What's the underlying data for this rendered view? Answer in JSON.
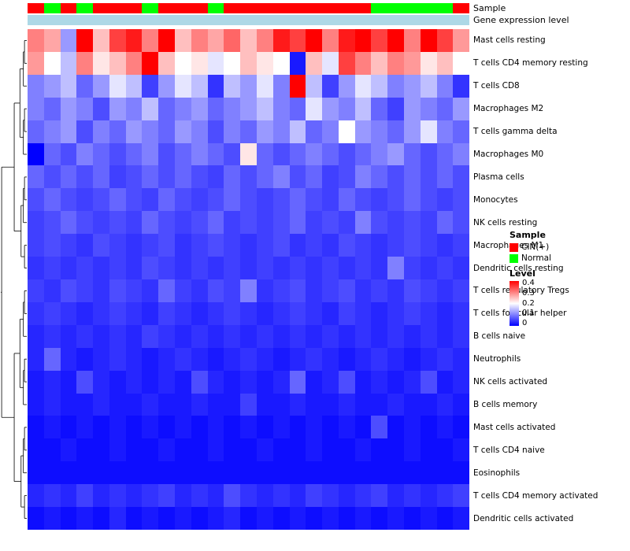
{
  "annotations": {
    "sample_label": "Sample",
    "expression_label": "Gene expression level",
    "expression_color": "#ADD8E6",
    "group_colors": {
      "CIN(+)": "#FF0000",
      "Normal": "#00FF00"
    },
    "groups": [
      "CIN(+)",
      "Normal",
      "CIN(+)",
      "Normal",
      "CIN(+)",
      "CIN(+)",
      "CIN(+)",
      "Normal",
      "CIN(+)",
      "CIN(+)",
      "CIN(+)",
      "Normal",
      "CIN(+)",
      "CIN(+)",
      "CIN(+)",
      "CIN(+)",
      "CIN(+)",
      "CIN(+)",
      "CIN(+)",
      "CIN(+)",
      "CIN(+)",
      "Normal",
      "Normal",
      "Normal",
      "Normal",
      "Normal",
      "CIN(+)"
    ]
  },
  "legend": {
    "sample_title": "Sample",
    "sample_items": [
      {
        "label": "CIN(+)",
        "color": "#FF0000"
      },
      {
        "label": "Normal",
        "color": "#00FF00"
      }
    ],
    "level_title": "Level",
    "level_ticks": [
      "0.4",
      "0.3",
      "0.2",
      "0.1",
      "0"
    ],
    "gradient": [
      "#FF0000",
      "#FFFFFF",
      "#0000FF"
    ]
  },
  "chart_data": {
    "type": "heatmap",
    "title": "",
    "rows": [
      "Mast cells resting",
      "T cells CD4 memory resting",
      "T cells CD8",
      "Macrophages M2",
      "T cells gamma delta",
      "Macrophages M0",
      "Plasma cells",
      "Monocytes",
      "NK cells resting",
      "Macrophages M1",
      "Dendritic cells resting",
      "T cells regulatory  Tregs",
      "T cells follicular helper",
      "B cells naive",
      "Neutrophils",
      "NK cells activated",
      "B cells memory",
      "Mast cells activated",
      "T cells CD4 naive",
      "Eosinophils",
      "T cells CD4 memory activated",
      "Dendritic cells activated"
    ],
    "columns": 27,
    "column_groups": [
      "CIN(+)",
      "Normal",
      "CIN(+)",
      "Normal",
      "CIN(+)",
      "CIN(+)",
      "CIN(+)",
      "Normal",
      "CIN(+)",
      "CIN(+)",
      "CIN(+)",
      "Normal",
      "CIN(+)",
      "CIN(+)",
      "CIN(+)",
      "CIN(+)",
      "CIN(+)",
      "CIN(+)",
      "CIN(+)",
      "CIN(+)",
      "CIN(+)",
      "Normal",
      "Normal",
      "Normal",
      "Normal",
      "Normal",
      "CIN(+)"
    ],
    "color_scale": {
      "min": 0,
      "mid": 0.2,
      "max": 0.4,
      "min_color": "#0000FF",
      "mid_color": "#FFFFFF",
      "max_color": "#FF0000"
    },
    "legend_position": "right",
    "row_dendrogram": true,
    "values": [
      [
        0.3,
        0.27,
        0.12,
        0.4,
        0.25,
        0.35,
        0.38,
        0.3,
        0.4,
        0.25,
        0.3,
        0.27,
        0.32,
        0.25,
        0.3,
        0.38,
        0.35,
        0.4,
        0.3,
        0.38,
        0.4,
        0.35,
        0.4,
        0.3,
        0.4,
        0.35,
        0.28
      ],
      [
        0.28,
        0.2,
        0.15,
        0.3,
        0.22,
        0.25,
        0.3,
        0.4,
        0.25,
        0.2,
        0.22,
        0.18,
        0.2,
        0.25,
        0.22,
        0.2,
        0.02,
        0.25,
        0.18,
        0.35,
        0.3,
        0.25,
        0.3,
        0.28,
        0.22,
        0.25,
        0.2
      ],
      [
        0.1,
        0.12,
        0.15,
        0.08,
        0.12,
        0.18,
        0.15,
        0.05,
        0.12,
        0.18,
        0.15,
        0.04,
        0.15,
        0.12,
        0.18,
        0.1,
        0.4,
        0.15,
        0.05,
        0.12,
        0.18,
        0.15,
        0.1,
        0.12,
        0.15,
        0.1,
        0.04
      ],
      [
        0.1,
        0.08,
        0.12,
        0.1,
        0.06,
        0.12,
        0.1,
        0.15,
        0.08,
        0.1,
        0.12,
        0.08,
        0.1,
        0.12,
        0.15,
        0.1,
        0.08,
        0.18,
        0.12,
        0.1,
        0.15,
        0.08,
        0.05,
        0.12,
        0.1,
        0.08,
        0.12
      ],
      [
        0.08,
        0.1,
        0.12,
        0.06,
        0.1,
        0.08,
        0.12,
        0.1,
        0.08,
        0.12,
        0.1,
        0.06,
        0.1,
        0.08,
        0.12,
        0.1,
        0.15,
        0.08,
        0.1,
        0.2,
        0.12,
        0.1,
        0.08,
        0.12,
        0.18,
        0.1,
        0.08
      ],
      [
        0.0,
        0.08,
        0.06,
        0.1,
        0.08,
        0.06,
        0.08,
        0.1,
        0.06,
        0.08,
        0.1,
        0.08,
        0.06,
        0.22,
        0.08,
        0.06,
        0.08,
        0.1,
        0.08,
        0.06,
        0.08,
        0.1,
        0.12,
        0.08,
        0.06,
        0.08,
        0.1
      ],
      [
        0.08,
        0.06,
        0.08,
        0.06,
        0.08,
        0.05,
        0.06,
        0.08,
        0.06,
        0.08,
        0.06,
        0.05,
        0.08,
        0.06,
        0.08,
        0.1,
        0.06,
        0.08,
        0.05,
        0.06,
        0.1,
        0.08,
        0.06,
        0.08,
        0.06,
        0.08,
        0.06
      ],
      [
        0.06,
        0.08,
        0.06,
        0.05,
        0.06,
        0.08,
        0.06,
        0.05,
        0.08,
        0.06,
        0.05,
        0.06,
        0.08,
        0.06,
        0.05,
        0.06,
        0.08,
        0.06,
        0.05,
        0.08,
        0.06,
        0.05,
        0.06,
        0.08,
        0.06,
        0.05,
        0.06
      ],
      [
        0.05,
        0.06,
        0.08,
        0.06,
        0.05,
        0.06,
        0.05,
        0.08,
        0.06,
        0.05,
        0.06,
        0.08,
        0.05,
        0.06,
        0.05,
        0.06,
        0.08,
        0.05,
        0.06,
        0.05,
        0.1,
        0.06,
        0.05,
        0.06,
        0.05,
        0.08,
        0.06
      ],
      [
        0.05,
        0.06,
        0.05,
        0.04,
        0.06,
        0.05,
        0.04,
        0.05,
        0.06,
        0.04,
        0.05,
        0.06,
        0.05,
        0.04,
        0.05,
        0.06,
        0.04,
        0.05,
        0.04,
        0.06,
        0.05,
        0.04,
        0.05,
        0.06,
        0.05,
        0.04,
        0.05
      ],
      [
        0.04,
        0.05,
        0.04,
        0.05,
        0.04,
        0.05,
        0.04,
        0.06,
        0.05,
        0.04,
        0.05,
        0.04,
        0.05,
        0.04,
        0.05,
        0.04,
        0.05,
        0.04,
        0.05,
        0.04,
        0.05,
        0.04,
        0.1,
        0.05,
        0.04,
        0.05,
        0.04
      ],
      [
        0.05,
        0.04,
        0.06,
        0.05,
        0.04,
        0.06,
        0.05,
        0.04,
        0.08,
        0.05,
        0.04,
        0.06,
        0.05,
        0.1,
        0.04,
        0.05,
        0.06,
        0.04,
        0.05,
        0.06,
        0.04,
        0.05,
        0.04,
        0.06,
        0.05,
        0.04,
        0.05
      ],
      [
        0.04,
        0.05,
        0.04,
        0.03,
        0.04,
        0.05,
        0.04,
        0.03,
        0.05,
        0.04,
        0.03,
        0.04,
        0.05,
        0.04,
        0.03,
        0.04,
        0.05,
        0.04,
        0.03,
        0.05,
        0.04,
        0.03,
        0.04,
        0.05,
        0.04,
        0.03,
        0.04
      ],
      [
        0.03,
        0.04,
        0.03,
        0.04,
        0.03,
        0.04,
        0.03,
        0.05,
        0.04,
        0.03,
        0.04,
        0.03,
        0.04,
        0.03,
        0.04,
        0.03,
        0.04,
        0.03,
        0.04,
        0.03,
        0.04,
        0.03,
        0.04,
        0.03,
        0.04,
        0.03,
        0.04
      ],
      [
        0.03,
        0.08,
        0.03,
        0.02,
        0.03,
        0.04,
        0.03,
        0.02,
        0.03,
        0.04,
        0.03,
        0.02,
        0.03,
        0.04,
        0.03,
        0.02,
        0.03,
        0.04,
        0.03,
        0.02,
        0.03,
        0.04,
        0.03,
        0.02,
        0.03,
        0.04,
        0.03
      ],
      [
        0.02,
        0.03,
        0.02,
        0.06,
        0.03,
        0.02,
        0.03,
        0.02,
        0.03,
        0.02,
        0.06,
        0.03,
        0.02,
        0.03,
        0.02,
        0.03,
        0.08,
        0.02,
        0.03,
        0.06,
        0.02,
        0.03,
        0.02,
        0.03,
        0.06,
        0.02,
        0.03
      ],
      [
        0.02,
        0.03,
        0.02,
        0.02,
        0.03,
        0.02,
        0.02,
        0.03,
        0.02,
        0.02,
        0.03,
        0.02,
        0.02,
        0.05,
        0.02,
        0.02,
        0.03,
        0.02,
        0.02,
        0.03,
        0.02,
        0.02,
        0.03,
        0.02,
        0.02,
        0.03,
        0.02
      ],
      [
        0.01,
        0.02,
        0.01,
        0.02,
        0.01,
        0.02,
        0.01,
        0.02,
        0.01,
        0.02,
        0.01,
        0.02,
        0.01,
        0.02,
        0.01,
        0.02,
        0.01,
        0.02,
        0.01,
        0.02,
        0.01,
        0.06,
        0.01,
        0.02,
        0.01,
        0.02,
        0.01
      ],
      [
        0.01,
        0.01,
        0.02,
        0.01,
        0.01,
        0.02,
        0.01,
        0.01,
        0.02,
        0.01,
        0.01,
        0.02,
        0.01,
        0.01,
        0.02,
        0.01,
        0.01,
        0.02,
        0.01,
        0.01,
        0.02,
        0.01,
        0.01,
        0.02,
        0.01,
        0.01,
        0.02
      ],
      [
        0.01,
        0.01,
        0.01,
        0.01,
        0.01,
        0.01,
        0.01,
        0.01,
        0.01,
        0.01,
        0.01,
        0.01,
        0.01,
        0.01,
        0.01,
        0.01,
        0.01,
        0.01,
        0.01,
        0.01,
        0.01,
        0.01,
        0.01,
        0.01,
        0.01,
        0.01,
        0.01
      ],
      [
        0.03,
        0.04,
        0.03,
        0.05,
        0.03,
        0.04,
        0.03,
        0.04,
        0.05,
        0.03,
        0.04,
        0.03,
        0.06,
        0.04,
        0.03,
        0.04,
        0.03,
        0.05,
        0.04,
        0.03,
        0.04,
        0.05,
        0.03,
        0.04,
        0.03,
        0.04,
        0.05
      ],
      [
        0.01,
        0.02,
        0.01,
        0.02,
        0.01,
        0.03,
        0.01,
        0.02,
        0.01,
        0.02,
        0.01,
        0.02,
        0.03,
        0.01,
        0.02,
        0.01,
        0.02,
        0.01,
        0.02,
        0.01,
        0.02,
        0.01,
        0.02,
        0.01,
        0.02,
        0.01,
        0.02
      ]
    ]
  }
}
